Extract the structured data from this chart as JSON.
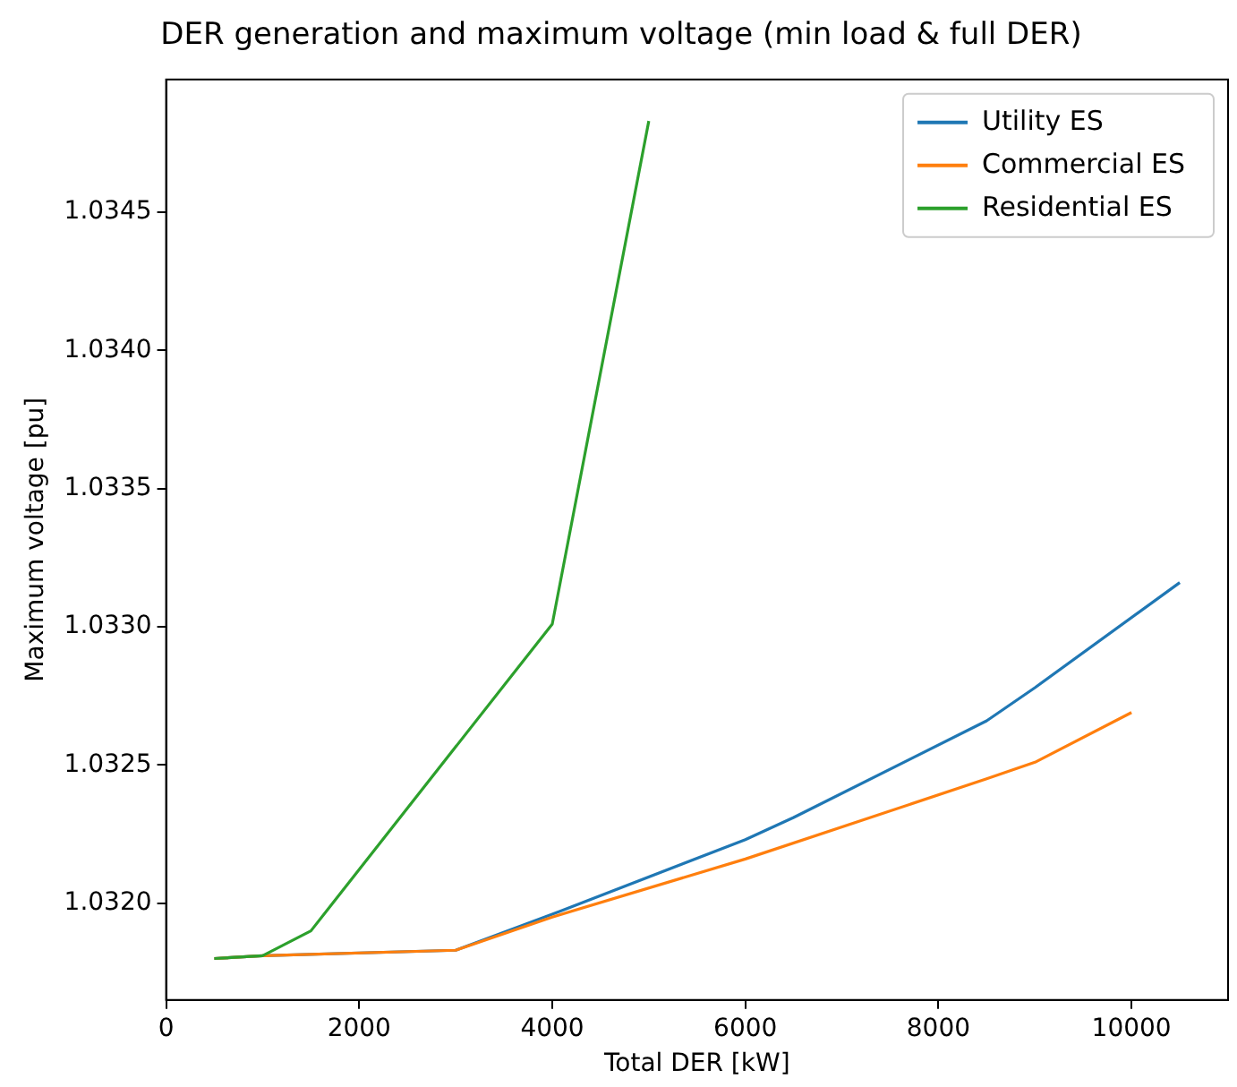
{
  "chart_data": {
    "type": "line",
    "title": "DER generation and maximum voltage (min load & full DER)",
    "xlabel": "Total DER [kW]",
    "ylabel": "Maximum voltage [pu]",
    "xlim": [
      0,
      11000
    ],
    "xticks": [
      0,
      2000,
      4000,
      6000,
      8000,
      10000
    ],
    "ylim": [
      1.03165,
      1.03498
    ],
    "yticks": [
      {
        "value": 1.032,
        "label": "1.0320"
      },
      {
        "value": 1.0325,
        "label": "1.0325"
      },
      {
        "value": 1.033,
        "label": "1.0330"
      },
      {
        "value": 1.0335,
        "label": "1.0335"
      },
      {
        "value": 1.034,
        "label": "1.0340"
      },
      {
        "value": 1.0345,
        "label": "1.0345"
      }
    ],
    "grid": false,
    "legend": "top right",
    "marker": "none",
    "line_style": "solid",
    "series": [
      {
        "name": "Utility ES",
        "color": "#1f77b4",
        "x": [
          500,
          1000,
          3000,
          4000,
          6000,
          6500,
          8500,
          9000,
          10500
        ],
        "values": [
          1.0318,
          1.03181,
          1.03183,
          1.03196,
          1.03223,
          1.03231,
          1.03266,
          1.03278,
          1.03316
        ]
      },
      {
        "name": "Commercial ES",
        "color": "#ff7f0e",
        "x": [
          500,
          1000,
          3000,
          4000,
          6000,
          8500,
          9000,
          10000
        ],
        "values": [
          1.0318,
          1.03181,
          1.03183,
          1.03195,
          1.03216,
          1.03245,
          1.03251,
          1.03269
        ]
      },
      {
        "name": "Residential ES",
        "color": "#2ca02c",
        "x": [
          500,
          1000,
          1500,
          4000,
          5000
        ],
        "values": [
          1.0318,
          1.03181,
          1.0319,
          1.03301,
          1.03483
        ]
      }
    ]
  }
}
